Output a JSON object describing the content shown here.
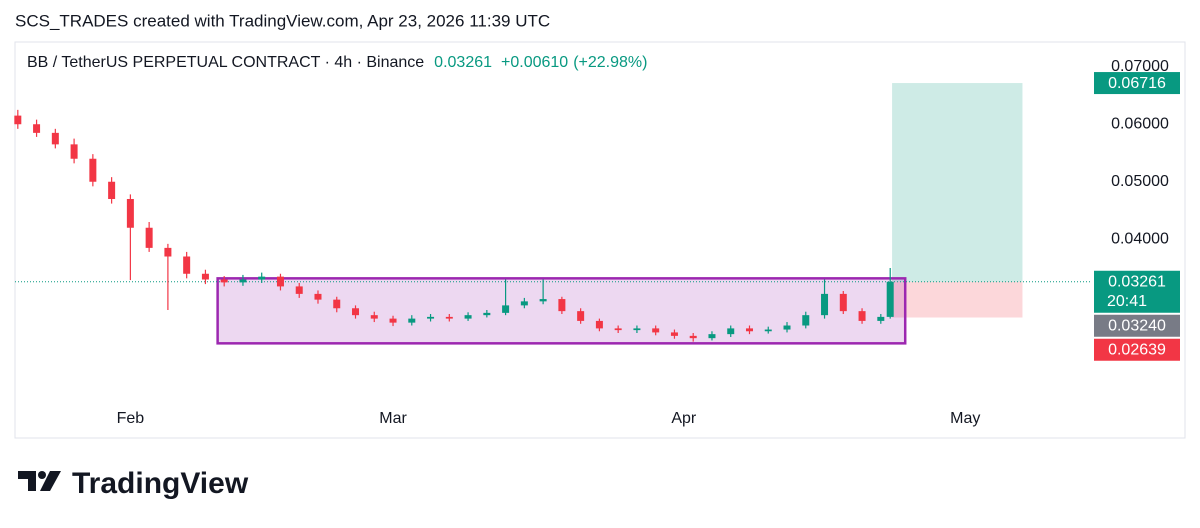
{
  "header": "SCS_TRADES created with TradingView.com, Apr 23, 2026 11:39 UTC",
  "footer_brand": "TradingView",
  "chart_data": {
    "type": "candlestick",
    "title": "BB / TetherUS PERPETUAL CONTRACT · 4h · Binance",
    "last_price": 0.03261,
    "change": {
      "value": 0.0061,
      "label": "+0.00610"
    },
    "change_pct": {
      "value": 22.98,
      "label": "(+22.98%)"
    },
    "up_color": "#089981",
    "down_color": "#f23645",
    "x": [
      19,
      21,
      23,
      25,
      27,
      29,
      31,
      33,
      35,
      37,
      39,
      41,
      43,
      45,
      47,
      49,
      51,
      53,
      55,
      57,
      59,
      61,
      63,
      65,
      67,
      69,
      71,
      73,
      75,
      77,
      79,
      81,
      83,
      85,
      87,
      89,
      91,
      93,
      95,
      97,
      99,
      101,
      103,
      105,
      107,
      109,
      111,
      112
    ],
    "open": [
      0.0615,
      0.06,
      0.0585,
      0.0565,
      0.054,
      0.05,
      0.047,
      0.042,
      0.0385,
      0.037,
      0.034,
      0.033,
      0.0325,
      0.033,
      0.0335,
      0.0318,
      0.0305,
      0.0295,
      0.028,
      0.0268,
      0.0262,
      0.0255,
      0.0262,
      0.0265,
      0.0262,
      0.0268,
      0.0272,
      0.0285,
      0.0292,
      0.0296,
      0.0275,
      0.0258,
      0.0245,
      0.0242,
      0.0245,
      0.0238,
      0.0232,
      0.0228,
      0.0235,
      0.0245,
      0.024,
      0.0243,
      0.025,
      0.0268,
      0.0305,
      0.0275,
      0.0258,
      0.0265
    ],
    "high": [
      0.0625,
      0.0608,
      0.0592,
      0.0575,
      0.0548,
      0.0508,
      0.0478,
      0.043,
      0.0392,
      0.0378,
      0.0347,
      0.0336,
      0.0338,
      0.0342,
      0.034,
      0.0324,
      0.0311,
      0.03,
      0.0285,
      0.0274,
      0.0267,
      0.0268,
      0.027,
      0.027,
      0.0273,
      0.0277,
      0.033,
      0.0298,
      0.033,
      0.03,
      0.028,
      0.0262,
      0.025,
      0.025,
      0.025,
      0.0243,
      0.0237,
      0.024,
      0.025,
      0.025,
      0.0248,
      0.0256,
      0.0274,
      0.033,
      0.031,
      0.028,
      0.027,
      0.035
    ],
    "low": [
      0.0592,
      0.0578,
      0.0558,
      0.0532,
      0.0492,
      0.0462,
      0.0329,
      0.0378,
      0.0277,
      0.0332,
      0.0322,
      0.0318,
      0.0319,
      0.0324,
      0.0311,
      0.0298,
      0.0288,
      0.0273,
      0.0262,
      0.0256,
      0.0249,
      0.025,
      0.0257,
      0.0257,
      0.0258,
      0.0264,
      0.0268,
      0.028,
      0.0287,
      0.027,
      0.0253,
      0.024,
      0.0237,
      0.0237,
      0.0233,
      0.0227,
      0.0222,
      0.0224,
      0.023,
      0.0235,
      0.0236,
      0.0238,
      0.0245,
      0.0262,
      0.027,
      0.0253,
      0.0253,
      0.0262
    ],
    "close": [
      0.06,
      0.0585,
      0.0565,
      0.054,
      0.05,
      0.047,
      0.042,
      0.0385,
      0.037,
      0.034,
      0.033,
      0.0325,
      0.033,
      0.0335,
      0.0318,
      0.0305,
      0.0295,
      0.028,
      0.0268,
      0.0262,
      0.0255,
      0.0262,
      0.0265,
      0.0262,
      0.0268,
      0.0272,
      0.0285,
      0.0292,
      0.0296,
      0.0275,
      0.0258,
      0.0245,
      0.0242,
      0.0245,
      0.0238,
      0.0232,
      0.0228,
      0.0235,
      0.0245,
      0.024,
      0.0243,
      0.025,
      0.0268,
      0.0305,
      0.0275,
      0.0258,
      0.0265,
      0.03261
    ],
    "xlim": [
      18.7,
      133.3
    ],
    "xticks": [
      {
        "value": 31,
        "label": "Feb"
      },
      {
        "value": 59,
        "label": "Mar"
      },
      {
        "value": 90,
        "label": "Apr"
      },
      {
        "value": 120,
        "label": "May"
      }
    ],
    "ylim": [
      0.0117,
      0.0743
    ],
    "yticks": [
      {
        "value": 0.04,
        "label": "0.04000"
      },
      {
        "value": 0.05,
        "label": "0.05000"
      },
      {
        "value": 0.06,
        "label": "0.06000"
      },
      {
        "value": 0.07,
        "label": "0.07000"
      }
    ],
    "range_box": {
      "x": [
        40.3,
        113.6
      ],
      "y": [
        0.0332,
        0.0219
      ],
      "color": "#9c27b0"
    },
    "position": {
      "x": [
        112.2,
        126.1
      ],
      "entry": 0.03261,
      "target": 0.06716,
      "stop": 0.02639
    },
    "price_labels": [
      {
        "value": 0.06716,
        "color": "#089981"
      },
      {
        "value": 0.03261,
        "color": "#089981",
        "countdown": "20:41"
      },
      {
        "value": 0.0324,
        "label": "0.03240",
        "color": "#787b86"
      },
      {
        "value": 0.02639,
        "color": "#f23645"
      }
    ]
  }
}
